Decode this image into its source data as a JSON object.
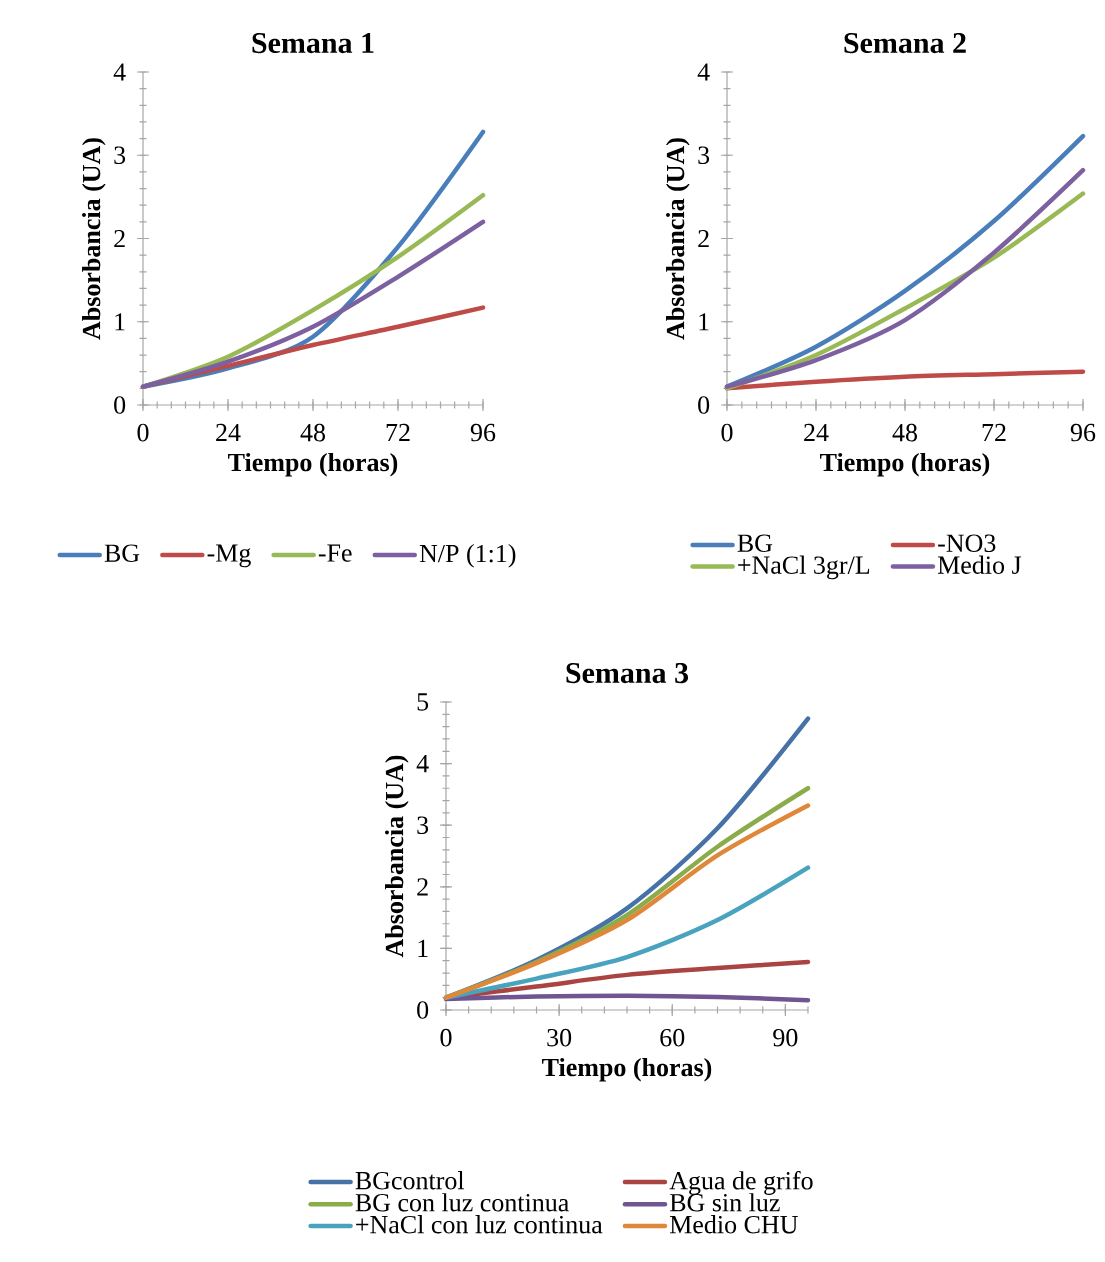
{
  "chart_data": [
    {
      "type": "line",
      "title": "Semana 1",
      "xlabel": "Tiempo (horas)",
      "ylabel": "Absorbancia (UA)",
      "x": [
        0,
        24,
        48,
        72,
        96
      ],
      "xlim": [
        0,
        96
      ],
      "xticks": [
        0,
        24,
        48,
        72,
        96
      ],
      "ylim": [
        0,
        4
      ],
      "yticks": [
        0,
        1,
        2,
        3,
        4
      ],
      "legend": "bottom",
      "series": [
        {
          "name": "BG",
          "color": "#4a7ebb",
          "values": [
            0.22,
            0.44,
            0.82,
            1.9,
            3.28
          ]
        },
        {
          "name": "-Mg",
          "color": "#be4b48",
          "values": [
            0.22,
            0.47,
            0.72,
            0.94,
            1.17
          ]
        },
        {
          "name": "-Fe",
          "color": "#98b954",
          "values": [
            0.22,
            0.58,
            1.14,
            1.78,
            2.52
          ]
        },
        {
          "name": "N/P (1:1)",
          "color": "#7d60a0",
          "values": [
            0.22,
            0.52,
            0.94,
            1.54,
            2.2
          ]
        }
      ]
    },
    {
      "type": "line",
      "title": "Semana 2",
      "xlabel": "Tiempo (horas)",
      "ylabel": "Absorbancia (UA)",
      "x": [
        0,
        24,
        48,
        72,
        96
      ],
      "xlim": [
        0,
        96
      ],
      "xticks": [
        0,
        24,
        48,
        72,
        96
      ],
      "ylim": [
        0,
        4
      ],
      "yticks": [
        0,
        1,
        2,
        3,
        4
      ],
      "legend": "bottom",
      "series": [
        {
          "name": "BG",
          "color": "#4a7ebb",
          "values": [
            0.22,
            0.7,
            1.37,
            2.21,
            3.23
          ]
        },
        {
          "name": "-NO3",
          "color": "#be4b48",
          "values": [
            0.2,
            0.28,
            0.34,
            0.37,
            0.4
          ]
        },
        {
          "name": "+NaCl 3gr/L",
          "color": "#98b954",
          "values": [
            0.2,
            0.6,
            1.16,
            1.77,
            2.54
          ]
        },
        {
          "name": "Medio J",
          "color": "#7d60a0",
          "values": [
            0.22,
            0.54,
            1.02,
            1.83,
            2.82
          ]
        }
      ]
    },
    {
      "type": "line",
      "title": "Semana 3",
      "xlabel": "Tiempo (horas)",
      "ylabel": "Absorbancia (UA)",
      "x": [
        0,
        24,
        48,
        72,
        96
      ],
      "xlim": [
        0,
        96
      ],
      "xticks": [
        0,
        30,
        60,
        90
      ],
      "ylim": [
        0,
        5
      ],
      "yticks": [
        0,
        1,
        2,
        3,
        4,
        5
      ],
      "legend": "bottom",
      "series": [
        {
          "name": "BGcontrol",
          "color": "#4672a8",
          "values": [
            0.2,
            0.81,
            1.65,
            2.95,
            4.73
          ]
        },
        {
          "name": "Agua de grifo",
          "color": "#a94442",
          "values": [
            0.2,
            0.38,
            0.57,
            0.68,
            0.78
          ]
        },
        {
          "name": "BG con luz continua",
          "color": "#8aac4a",
          "values": [
            0.2,
            0.78,
            1.54,
            2.65,
            3.6
          ]
        },
        {
          "name": "BG sin luz",
          "color": "#6f5592",
          "values": [
            0.18,
            0.22,
            0.23,
            0.21,
            0.16
          ]
        },
        {
          "name": "+NaCl con luz continua",
          "color": "#4aa3be",
          "values": [
            0.2,
            0.51,
            0.86,
            1.46,
            2.31
          ]
        },
        {
          "name": "Medio CHU",
          "color": "#e0883a",
          "values": [
            0.2,
            0.76,
            1.46,
            2.51,
            3.32
          ]
        }
      ]
    }
  ]
}
